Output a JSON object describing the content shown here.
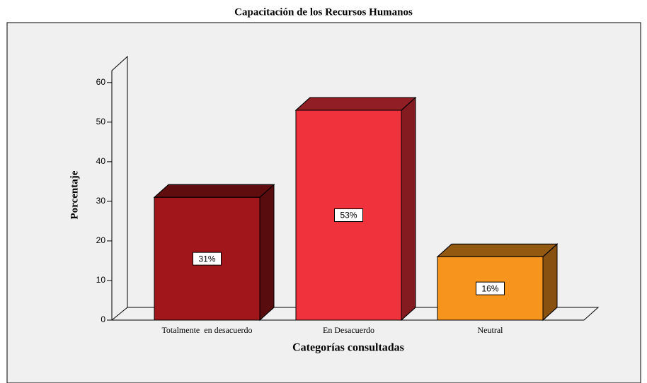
{
  "chart_data": {
    "type": "bar",
    "title": "Capacitación de los Recursos Humanos",
    "xlabel": "Categorías consultadas",
    "ylabel": "Porcentaje",
    "categories": [
      "Totalmente  en desacuerdo",
      "En Desacuerdo",
      "Neutral"
    ],
    "values": [
      31,
      53,
      16
    ],
    "value_labels": [
      "31%",
      "53%",
      "16%"
    ],
    "colors": [
      "#a0161a",
      "#f0323c",
      "#f7941d"
    ],
    "ylim": [
      0,
      63
    ],
    "yticks": [
      0,
      10,
      20,
      30,
      40,
      50,
      60
    ]
  }
}
